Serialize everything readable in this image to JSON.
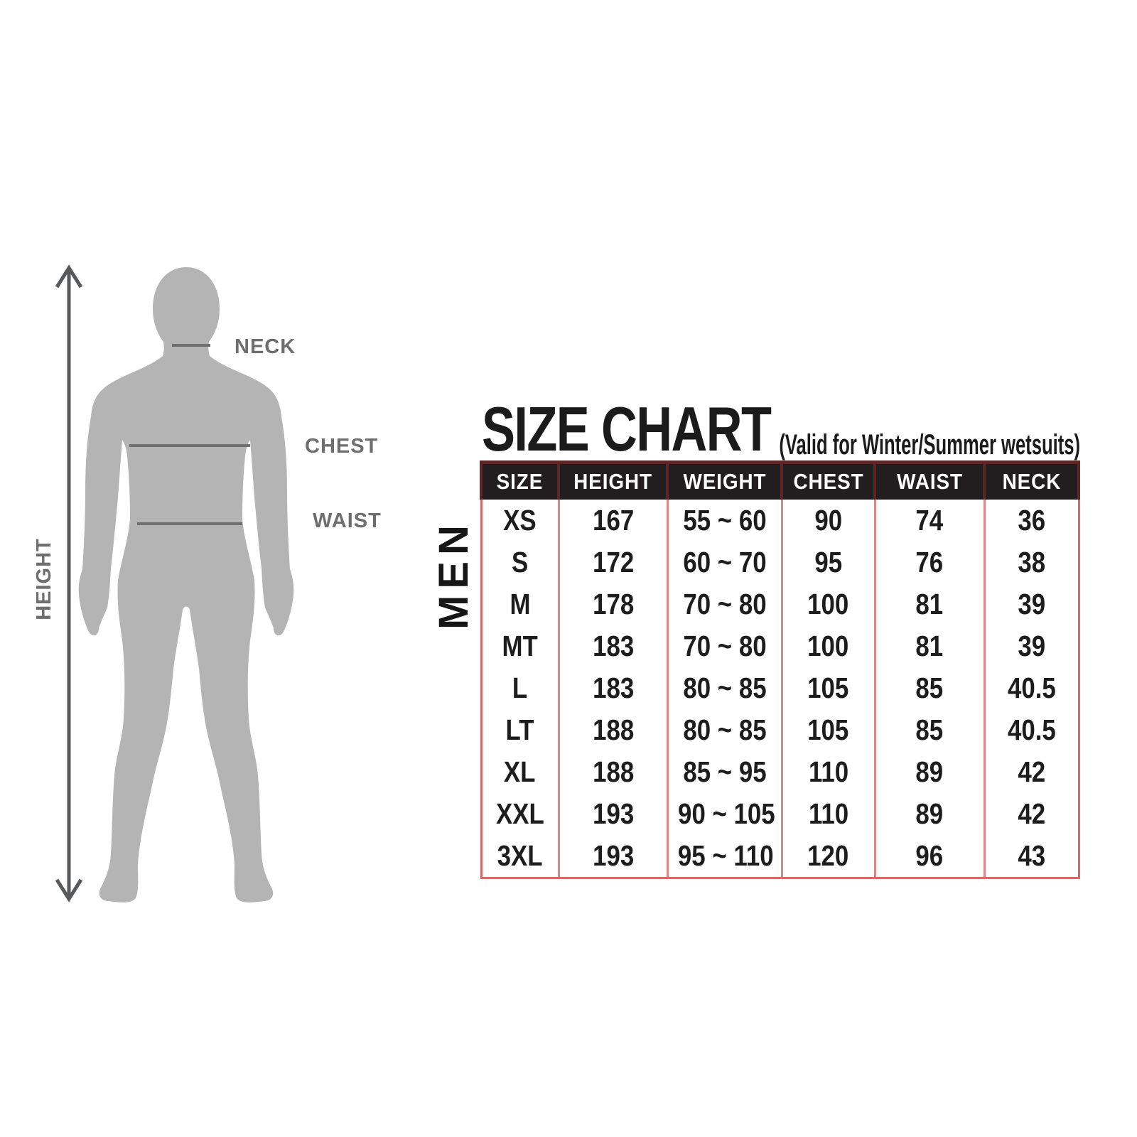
{
  "figure": {
    "height_label": "HEIGHT",
    "neck_label": "NECK",
    "chest_label": "CHEST",
    "waist_label": "WAIST",
    "silhouette_color": "#b4b4b4",
    "measure_line_color": "#707070",
    "arrow_color": "#58595b",
    "label_color": "#6e6e6e"
  },
  "header": {
    "title": "SIZE CHART",
    "subtitle": "(Valid for Winter/Summer wetsuits)"
  },
  "group_label": "MEN",
  "table_style": {
    "header_bg": "#221e1f",
    "header_text": "#ffffff",
    "header_divider": "#5c2626",
    "body_divider": "#dc8888",
    "outer_border": "#d66a6a",
    "text_color": "#1d1d1d"
  },
  "chart_data": {
    "type": "table",
    "title": "SIZE CHART",
    "subtitle": "(Valid for Winter/Summer wetsuits)",
    "group": "MEN",
    "columns": [
      "SIZE",
      "HEIGHT",
      "WEIGHT",
      "CHEST",
      "WAIST",
      "NECK"
    ],
    "rows": [
      [
        "XS",
        "167",
        "55 ~ 60",
        "90",
        "74",
        "36"
      ],
      [
        "S",
        "172",
        "60 ~ 70",
        "95",
        "76",
        "38"
      ],
      [
        "M",
        "178",
        "70 ~ 80",
        "100",
        "81",
        "39"
      ],
      [
        "MT",
        "183",
        "70 ~ 80",
        "100",
        "81",
        "39"
      ],
      [
        "L",
        "183",
        "80 ~ 85",
        "105",
        "85",
        "40.5"
      ],
      [
        "LT",
        "188",
        "80 ~ 85",
        "105",
        "85",
        "40.5"
      ],
      [
        "XL",
        "188",
        "85 ~ 95",
        "110",
        "89",
        "42"
      ],
      [
        "XXL",
        "193",
        "90 ~ 105",
        "110",
        "89",
        "42"
      ],
      [
        "3XL",
        "193",
        "95 ~ 110",
        "120",
        "96",
        "43"
      ]
    ]
  }
}
